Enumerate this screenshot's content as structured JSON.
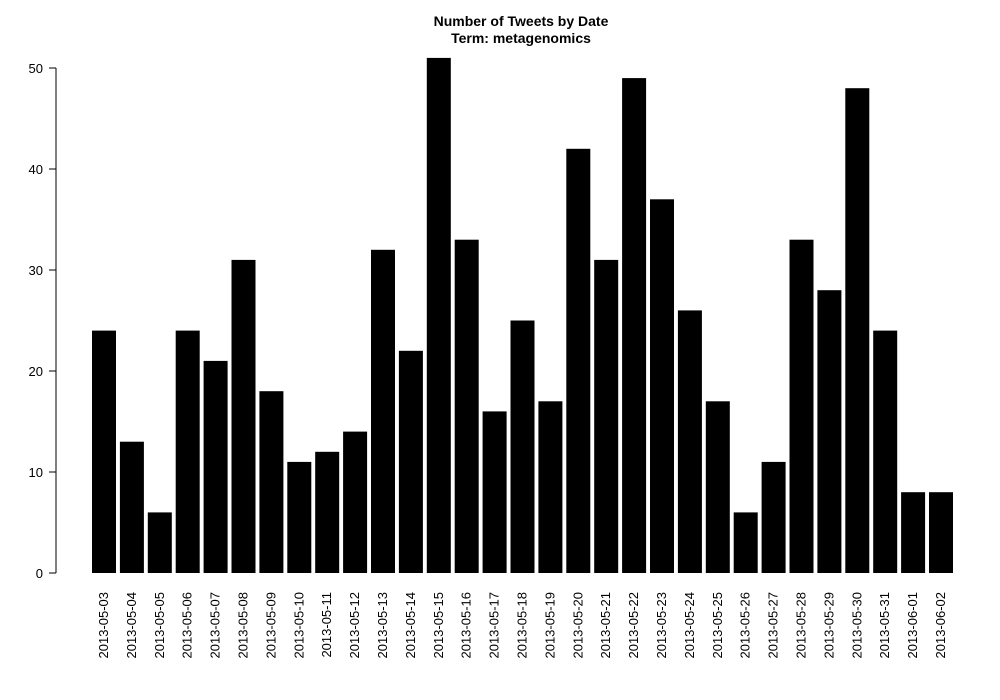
{
  "chart_data": {
    "type": "bar",
    "title": "Number of Tweets by Date",
    "subtitle": "Term: metagenomics",
    "xlabel": "",
    "ylabel": "",
    "ylim": [
      0,
      51
    ],
    "yticks": [
      0,
      10,
      20,
      30,
      40,
      50
    ],
    "grid": false,
    "bar_color": "#000000",
    "categories": [
      "2013-05-03",
      "2013-05-04",
      "2013-05-05",
      "2013-05-06",
      "2013-05-07",
      "2013-05-08",
      "2013-05-09",
      "2013-05-10",
      "2013-05-11",
      "2013-05-12",
      "2013-05-13",
      "2013-05-14",
      "2013-05-15",
      "2013-05-16",
      "2013-05-17",
      "2013-05-18",
      "2013-05-19",
      "2013-05-20",
      "2013-05-21",
      "2013-05-22",
      "2013-05-23",
      "2013-05-24",
      "2013-05-25",
      "2013-05-26",
      "2013-05-27",
      "2013-05-28",
      "2013-05-29",
      "2013-05-30",
      "2013-05-31",
      "2013-06-01",
      "2013-06-02"
    ],
    "values": [
      24,
      13,
      6,
      24,
      21,
      31,
      18,
      11,
      12,
      14,
      32,
      22,
      51,
      33,
      16,
      25,
      17,
      42,
      31,
      49,
      37,
      26,
      17,
      6,
      11,
      33,
      28,
      48,
      24,
      8,
      8
    ]
  }
}
